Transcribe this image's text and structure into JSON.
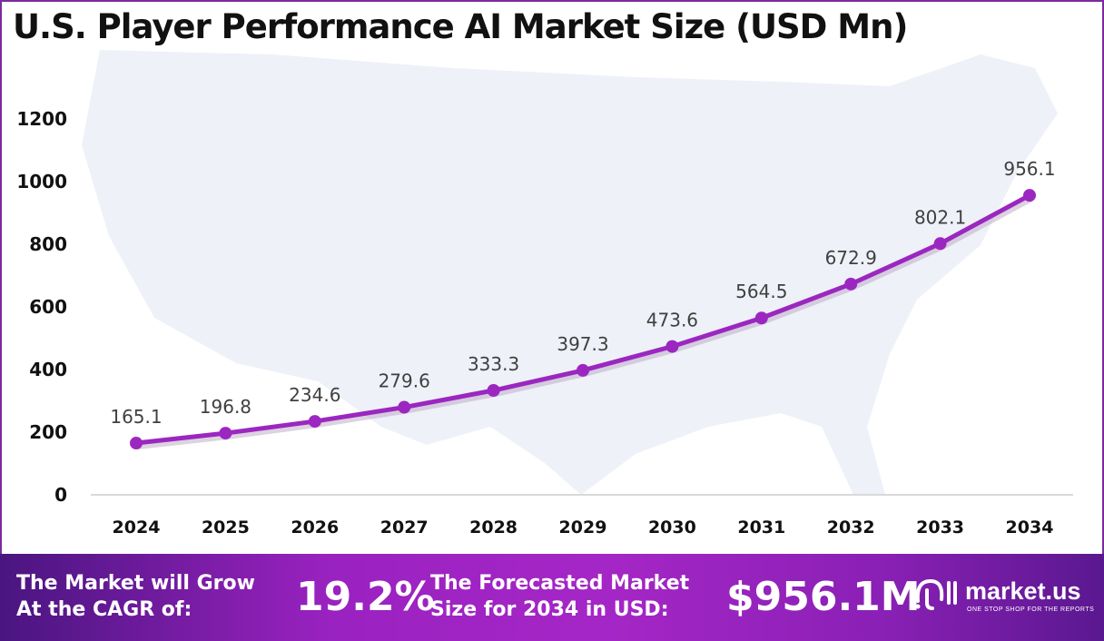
{
  "chart_data": {
    "type": "line",
    "title": "U.S. Player Performance AI Market Size (USD Mn)",
    "categories": [
      "2024",
      "2025",
      "2026",
      "2027",
      "2028",
      "2029",
      "2030",
      "2031",
      "2032",
      "2033",
      "2034"
    ],
    "values": [
      165.1,
      196.8,
      234.6,
      279.6,
      333.3,
      397.3,
      473.6,
      564.5,
      672.9,
      802.1,
      956.1
    ],
    "data_labels": [
      "165.1",
      "196.8",
      "234.6",
      "279.6",
      "333.3",
      "397.3",
      "473.6",
      "564.5",
      "672.9",
      "802.1",
      "956.1"
    ],
    "yticks": [
      "0",
      "200",
      "400",
      "600",
      "800",
      "1000",
      "1200"
    ],
    "ylim": [
      0,
      1200
    ],
    "grid": false,
    "line_color": "#9b27c0",
    "background": "US map silhouette"
  },
  "footer": {
    "cagr_label": [
      "The Market will Grow",
      "At the CAGR of:"
    ],
    "cagr_value": "19.2%",
    "forecast_label": [
      "The Forecasted Market",
      "Size for 2034 in USD:"
    ],
    "forecast_value": "$956.1M",
    "logo_name": "market.us",
    "logo_tagline": "ONE STOP SHOP FOR THE REPORTS"
  }
}
